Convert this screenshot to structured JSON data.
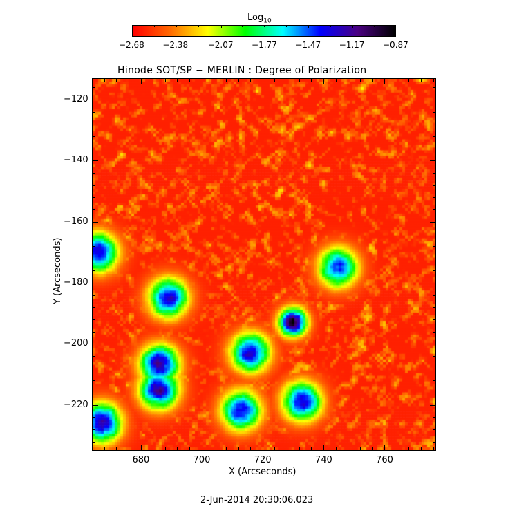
{
  "chart_data": {
    "type": "heatmap",
    "title": "Hinode SOT/SP − MERLIN : Degree of Polarization",
    "xlabel": "X (Arcseconds)",
    "ylabel": "Y (Arcseconds)",
    "xlim": [
      664,
      777
    ],
    "ylim": [
      -235,
      -113
    ],
    "x_ticks": [
      680,
      700,
      720,
      740,
      760
    ],
    "y_ticks": [
      -120,
      -140,
      -160,
      -180,
      -200,
      -220
    ],
    "x_tick_labels": [
      "680",
      "700",
      "720",
      "740",
      "760"
    ],
    "y_tick_labels": [
      "−120",
      "−140",
      "−160",
      "−180",
      "−200",
      "−220"
    ],
    "colorbar": {
      "label_base": "Log",
      "label_sub": "10",
      "range": [
        -2.68,
        -0.87
      ],
      "ticks": [
        -2.68,
        -2.38,
        -2.07,
        -1.77,
        -1.47,
        -1.17,
        -0.87
      ],
      "tick_labels": [
        "−2.68",
        "−2.38",
        "−2.07",
        "−1.77",
        "−1.47",
        "−1.17",
        "−0.87"
      ],
      "colormap": [
        "#ff0000",
        "#ff6a00",
        "#ffff00",
        "#00ff00",
        "#00ffff",
        "#0000ff",
        "#4b0082",
        "#000000"
      ]
    },
    "background_level": -2.6,
    "high_polarization_regions": [
      {
        "x": 730,
        "y": -193,
        "peak": -0.9
      },
      {
        "x": 686,
        "y": -207,
        "peak": -1.2
      },
      {
        "x": 686,
        "y": -215,
        "peak": -1.2
      },
      {
        "x": 689,
        "y": -185,
        "peak": -1.3
      },
      {
        "x": 666,
        "y": -170,
        "peak": -1.3
      },
      {
        "x": 667,
        "y": -226,
        "peak": -1.2
      },
      {
        "x": 716,
        "y": -203,
        "peak": -1.3
      },
      {
        "x": 713,
        "y": -222,
        "peak": -1.3
      },
      {
        "x": 733,
        "y": -219,
        "peak": -1.3
      },
      {
        "x": 745,
        "y": -175,
        "peak": -1.4
      }
    ]
  },
  "footer": {
    "timestamp": "2-Jun-2014 20:30:06.023"
  }
}
